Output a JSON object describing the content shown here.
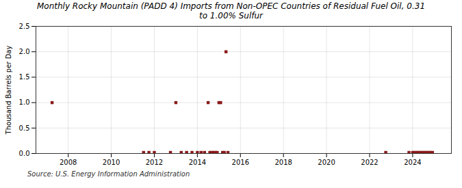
{
  "chart_data": {
    "type": "scatter",
    "title": "Monthly Rocky Mountain (PADD 4) Imports from Non-OPEC Countries of Residual Fuel Oil, 0.31\nto 1.00% Sulfur",
    "ylabel": "Thousand Barrels per Day",
    "annotation": "Source: U.S. Energy Information Administration",
    "color": "#8b1a1a",
    "marker": "square",
    "grid": true,
    "xlim": [
      2006.5,
      2025.8
    ],
    "xticks": [
      2008,
      2010,
      2012,
      2014,
      2016,
      2018,
      2020,
      2022,
      2024
    ],
    "ylim": [
      0,
      2.5
    ],
    "yticks": [
      {
        "value": 0,
        "label": "0.0"
      },
      0.5,
      {
        "value": 1,
        "label": "1.0"
      },
      1.5,
      {
        "value": 2,
        "label": "2.0"
      },
      2.5
    ],
    "x": [
      2007.25,
      2011.5,
      2011.75,
      2012.0,
      2012.75,
      2013.0,
      2013.25,
      2013.5,
      2013.75,
      2014.0,
      2014.17,
      2014.33,
      2014.5,
      2014.58,
      2014.67,
      2014.75,
      2014.83,
      2014.92,
      2015.0,
      2015.08,
      2015.17,
      2015.25,
      2015.33,
      2015.42,
      2022.75,
      2023.83,
      2024.0,
      2024.08,
      2024.17,
      2024.25,
      2024.33,
      2024.42,
      2024.5,
      2024.58,
      2024.67,
      2024.75,
      2024.83,
      2024.92
    ],
    "values": [
      1.0,
      0.02,
      0.02,
      0.02,
      0.02,
      1.0,
      0.02,
      0.02,
      0.02,
      0.02,
      0.02,
      0.02,
      1.0,
      0.02,
      0.02,
      0.02,
      0.02,
      0.02,
      1.0,
      1.0,
      0.02,
      0.02,
      2.0,
      0.02,
      0.02,
      0.02,
      0.02,
      0.02,
      0.02,
      0.02,
      0.02,
      0.02,
      0.02,
      0.02,
      0.02,
      0.02,
      0.02,
      0.02
    ]
  }
}
